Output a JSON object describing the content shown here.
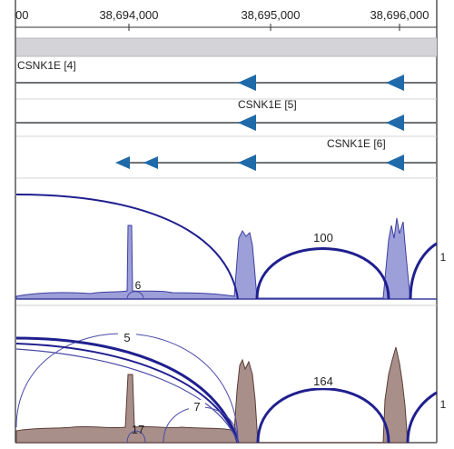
{
  "ruler": {
    "ticks": [
      {
        "label": "00"
      },
      {
        "label": "38,694,000"
      },
      {
        "label": "38,695,000"
      },
      {
        "label": "38,696,000"
      }
    ]
  },
  "transcripts": [
    {
      "name": "CSNK1E [4]"
    },
    {
      "name": "CSNK1E [5]"
    },
    {
      "name": "CSNK1E [6]"
    }
  ],
  "track1": {
    "junction_labels": {
      "left_small": "6",
      "main": "100",
      "right_edge": "1"
    }
  },
  "track2": {
    "junction_labels": {
      "arc_a": "5",
      "arc_b": "7",
      "arc_c": "17",
      "main": "164",
      "right_edge": "1"
    }
  },
  "colors": {
    "ruler_text": "#222222",
    "gene_line": "#6f7378",
    "exon_arrow": "#1f6aa8",
    "arc_main": "#1f1f8f",
    "arc_thin": "#4a4aa8",
    "coverage1_fill": "#9c9fd8",
    "coverage1_stroke": "#3c3fa0",
    "coverage2_fill": "#a98f8a",
    "coverage2_stroke": "#5a3c36",
    "panel_gray": "#d4d4d8"
  },
  "icons": {
    "arrow": "left-pointing-triangle"
  }
}
